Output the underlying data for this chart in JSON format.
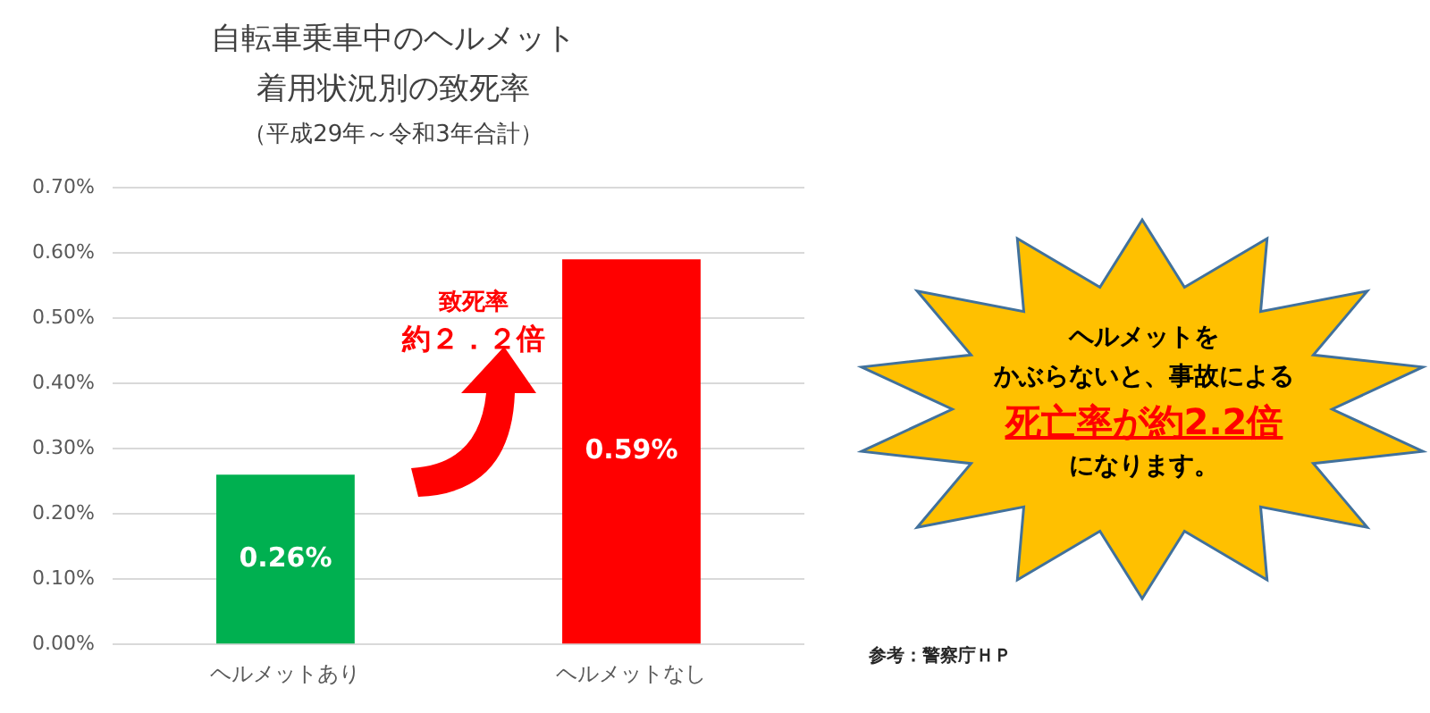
{
  "chart_data": {
    "type": "bar",
    "title": "自転車乗車中のヘルメット着用状況別の致死率",
    "subtitle": "（平成29年～令和3年合計）",
    "categories": [
      "ヘルメットあり",
      "ヘルメットなし"
    ],
    "values": [
      0.26,
      0.59
    ],
    "colors": [
      "#00b050",
      "#ff0000"
    ],
    "value_labels": [
      "0.26%",
      "0.59%"
    ],
    "ylim": [
      0,
      0.7
    ],
    "yticks": [
      {
        "value": 0,
        "label": "0.00%"
      },
      {
        "value": 0.1,
        "label": "0.10%"
      },
      {
        "value": 0.2,
        "label": "0.20%"
      },
      {
        "value": 0.3,
        "label": "0.30%"
      },
      {
        "value": 0.4,
        "label": "0.40%"
      },
      {
        "value": 0.5,
        "label": "0.50%"
      },
      {
        "value": 0.6,
        "label": "0.60%"
      },
      {
        "value": 0.7,
        "label": "0.70%"
      }
    ],
    "grid": "y",
    "legend": false,
    "annotations": [
      "致死率",
      "約２．２倍",
      "ヘルメットを",
      "かぶらないと、事故による",
      "死亡率が約2.2倍",
      "になります。",
      "参考：警察庁ＨＰ"
    ]
  }
}
